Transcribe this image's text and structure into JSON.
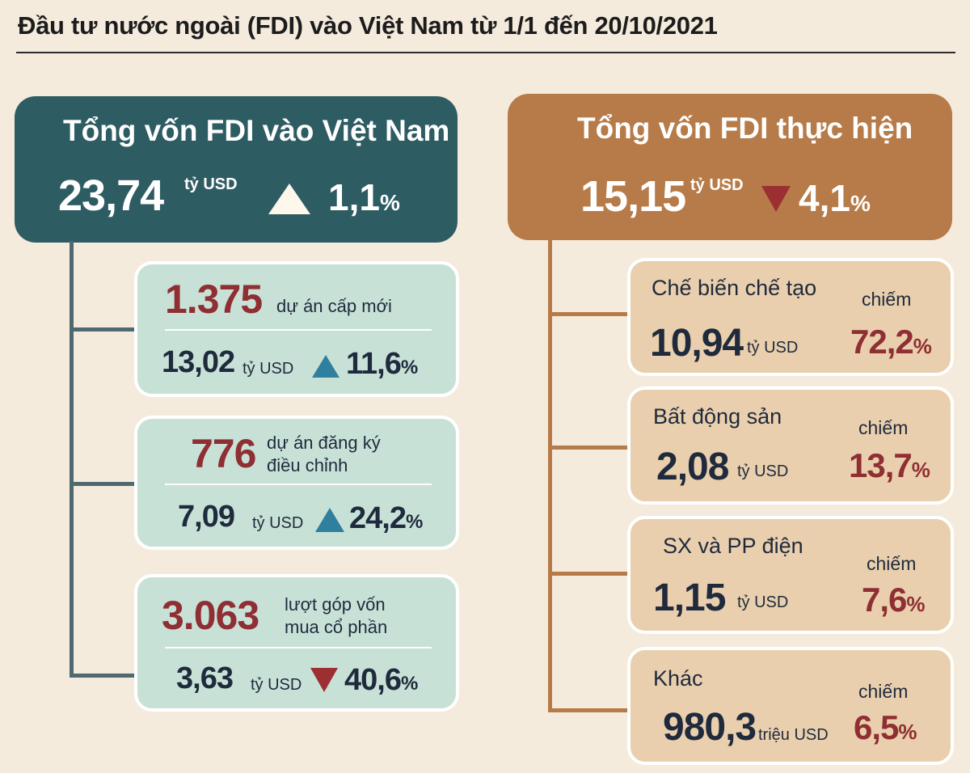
{
  "title": "Đầu tư nước ngoài (FDI) vào Việt Nam từ 1/1 đến 20/10/2021",
  "colors": {
    "teal_header": "#2e5c63",
    "brown_header": "#b67b48",
    "green_card": "#c8e1d7",
    "tan_card": "#e9cfad",
    "accent_red": "#8f2e33",
    "arrow_blue": "#2f7f9e",
    "arrow_red": "#9c2f31",
    "background": "#f4ebdd"
  },
  "left": {
    "header": {
      "title": "Tổng vốn FDI vào Việt Nam",
      "value": "23,74",
      "unit": "tỷ USD",
      "trend": "up",
      "change": "1,1",
      "percent_sign": "%"
    },
    "cards": [
      {
        "count": "1.375",
        "label_line1": "dự án cấp mới",
        "label_line2": "",
        "value": "13,02",
        "unit": "tỷ USD",
        "trend": "up",
        "change": "11,6",
        "percent_sign": "%"
      },
      {
        "count": "776",
        "label_line1": "dự án đăng ký",
        "label_line2": "điều chỉnh",
        "value": "7,09",
        "unit": "tỷ USD",
        "trend": "up",
        "change": "24,2",
        "percent_sign": "%"
      },
      {
        "count": "3.063",
        "label_line1": "lượt góp vốn",
        "label_line2": "mua cổ phần",
        "value": "3,63",
        "unit": "tỷ USD",
        "trend": "down",
        "change": "40,6",
        "percent_sign": "%"
      }
    ]
  },
  "right": {
    "header": {
      "title": "Tổng vốn FDI thực hiện",
      "value": "15,15",
      "unit": "tỷ USD",
      "trend": "down",
      "change": "4,1",
      "percent_sign": "%"
    },
    "cards": [
      {
        "category": "Chế biến chế tạo",
        "share_label": "chiếm",
        "value": "10,94",
        "unit": "tỷ USD",
        "share": "72,2",
        "percent_sign": "%"
      },
      {
        "category": "Bất động sản",
        "share_label": "chiếm",
        "value": "2,08",
        "unit": "tỷ USD",
        "share": "13,7",
        "percent_sign": "%"
      },
      {
        "category": "SX và PP điện",
        "share_label": "chiếm",
        "value": "1,15",
        "unit": "tỷ USD",
        "share": "7,6",
        "percent_sign": "%"
      },
      {
        "category": "Khác",
        "share_label": "chiếm",
        "value": "980,3",
        "unit": "triệu USD",
        "share": "6,5",
        "percent_sign": "%"
      }
    ]
  }
}
